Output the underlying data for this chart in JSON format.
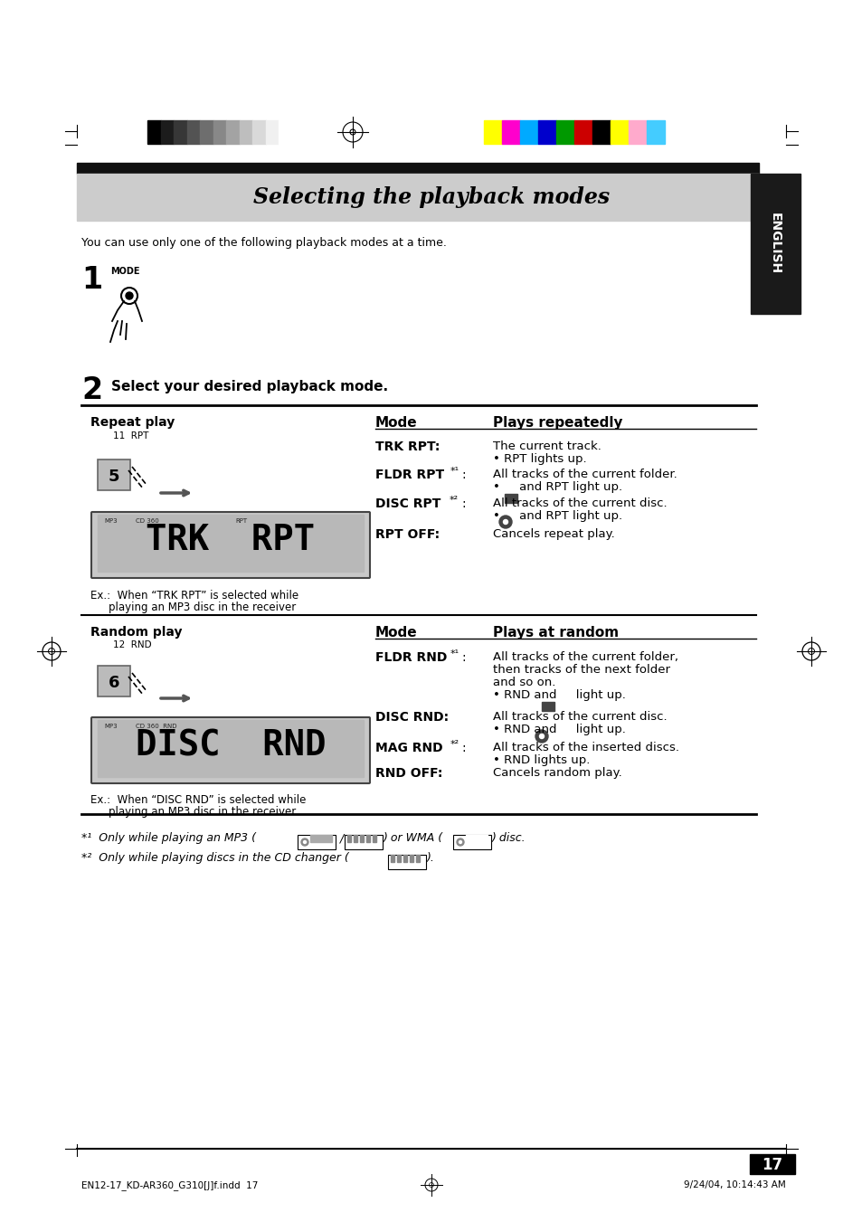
{
  "page_bg": "#ffffff",
  "title_text": "Selecting the playback modes",
  "english_tab_text": "ENGLISH",
  "intro_text": "You can use only one of the following playback modes at a time.",
  "step1_num": "1",
  "step1_label": "MODE",
  "step2_num": "2",
  "step2_text": "Select your desired playback mode.",
  "repeat_section_title": "Repeat play",
  "repeat_step_label": "11  RPT",
  "repeat_ex_line1": "Ex.:  When “TRK RPT” is selected while",
  "repeat_ex_line2": "playing an MP3 disc in the receiver",
  "repeat_table_header_mode": "Mode",
  "repeat_table_header_plays": "Plays repeatedly",
  "trk_rpt_label": "TRK RPT",
  "trk_rpt_desc1": "The current track.",
  "trk_rpt_desc2": "• RPT lights up.",
  "fldr_rpt_label": "FLDR RPT",
  "fldr_rpt_super": "*¹",
  "fldr_rpt_desc1": "All tracks of the current folder.",
  "fldr_rpt_desc2": "•     and RPT light up.",
  "disc_rpt_label": "DISC RPT",
  "disc_rpt_super": "*²",
  "disc_rpt_desc1": "All tracks of the current disc.",
  "disc_rpt_desc2": "•     and RPT light up.",
  "rpt_off_label": "RPT OFF",
  "rpt_off_desc": "Cancels repeat play.",
  "random_section_title": "Random play",
  "random_step_label": "12  RND",
  "random_ex_line1": "Ex.:  When “DISC RND” is selected while",
  "random_ex_line2": "playing an MP3 disc in the receiver",
  "random_table_header_mode": "Mode",
  "random_table_header_plays": "Plays at random",
  "fldr_rnd_label": "FLDR RND",
  "fldr_rnd_super": "*¹",
  "fldr_rnd_desc1": "All tracks of the current folder,",
  "fldr_rnd_desc2": "then tracks of the next folder",
  "fldr_rnd_desc3": "and so on.",
  "fldr_rnd_desc4": "• RND and     light up.",
  "disc_rnd_label": "DISC RND",
  "disc_rnd_desc1": "All tracks of the current disc.",
  "disc_rnd_desc2": "• RND and     light up.",
  "mag_rnd_label": "MAG RND",
  "mag_rnd_super": "*²",
  "mag_rnd_desc1": "All tracks of the inserted discs.",
  "mag_rnd_desc2": "• RND lights up.",
  "rnd_off_label": "RND OFF",
  "rnd_off_desc": "Cancels random play.",
  "footnote1_pre": "*¹  Only while playing an MP3 (",
  "footnote1_slash": " / ",
  "footnote1_mid": ") or WMA (",
  "footnote1_post": ") disc.",
  "footnote2_pre": "*²  Only while playing discs in the CD changer (",
  "footnote2_post": ").",
  "page_number": "17",
  "footer_left": "EN12-17_KD-AR360_G310[J]f.indd  17",
  "footer_right": "9/24/04, 10:14:43 AM",
  "gray_colors": [
    "#000000",
    "#1c1c1c",
    "#373737",
    "#535353",
    "#6e6e6e",
    "#888888",
    "#a3a3a3",
    "#bebebe",
    "#d9d9d9",
    "#f0f0f0",
    "#ffffff"
  ],
  "color_bars": [
    "#ffff00",
    "#ff00cc",
    "#00aaff",
    "#0000cc",
    "#009900",
    "#cc0000",
    "#000000",
    "#ffff00",
    "#ffaacc",
    "#44ccff"
  ]
}
